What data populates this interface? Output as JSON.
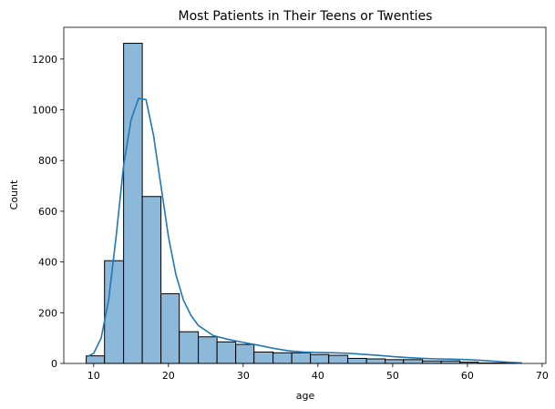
{
  "chart_data": {
    "type": "bar",
    "title": "Most Patients in Their Teens or Twenties",
    "xlabel": "age",
    "ylabel": "Count",
    "xlim": [
      6,
      70.5
    ],
    "ylim": [
      0,
      1325
    ],
    "x_ticks": [
      10,
      20,
      30,
      40,
      50,
      60,
      70
    ],
    "y_ticks": [
      0,
      200,
      400,
      600,
      800,
      1000,
      1200
    ],
    "bin_edges": [
      9,
      11.45,
      14,
      16.5,
      19,
      21.45,
      24,
      26.5,
      29,
      31.45,
      34,
      36.5,
      39,
      41.45,
      44,
      46.5,
      49,
      51.45,
      54,
      56.5,
      59,
      61.45,
      64,
      66.5
    ],
    "counts": [
      30,
      405,
      1262,
      658,
      275,
      125,
      105,
      85,
      75,
      45,
      42,
      42,
      35,
      32,
      20,
      18,
      15,
      15,
      10,
      10,
      5,
      2,
      2
    ],
    "kde": {
      "x": [
        9,
        10,
        11,
        12,
        13,
        14,
        15,
        16,
        17,
        18,
        19,
        20,
        21,
        22,
        23,
        24,
        26,
        28,
        30,
        32,
        34,
        36,
        38,
        40,
        42,
        44,
        46,
        48,
        50,
        52,
        54,
        56,
        58,
        60,
        62,
        64,
        66,
        67.3
      ],
      "y": [
        25,
        40,
        100,
        250,
        500,
        780,
        960,
        1045,
        1040,
        900,
        700,
        500,
        350,
        250,
        190,
        150,
        110,
        95,
        83,
        72,
        60,
        50,
        45,
        43,
        42,
        40,
        36,
        32,
        27,
        23,
        20,
        18,
        17,
        15,
        12,
        8,
        4,
        2
      ]
    },
    "grid": false,
    "colors": {
      "bar_fill": "#8cb9d9",
      "bar_edge": "#000000",
      "kde_line": "#1f77b4"
    }
  }
}
